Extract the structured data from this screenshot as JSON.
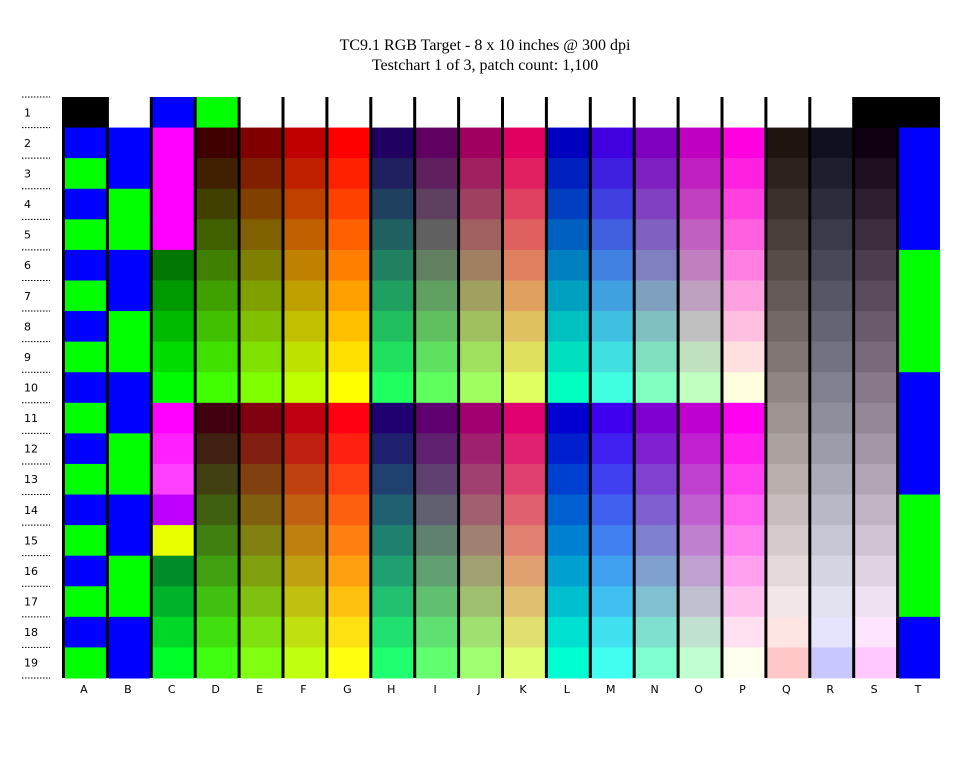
{
  "header": {
    "title": "TC9.1 RGB Target - 8 x 10 inches @ 300 dpi",
    "subtitle": "Testchart 1 of 3, patch count: 1,100"
  },
  "rows": [
    "1",
    "2",
    "3",
    "4",
    "5",
    "6",
    "7",
    "8",
    "9",
    "10",
    "11",
    "12",
    "13",
    "14",
    "15",
    "16",
    "17",
    "18",
    "19"
  ],
  "columns": [
    "A",
    "B",
    "C",
    "D",
    "E",
    "F",
    "G",
    "H",
    "I",
    "J",
    "K",
    "L",
    "M",
    "N",
    "O",
    "P",
    "Q",
    "R",
    "S",
    "T"
  ]
}
